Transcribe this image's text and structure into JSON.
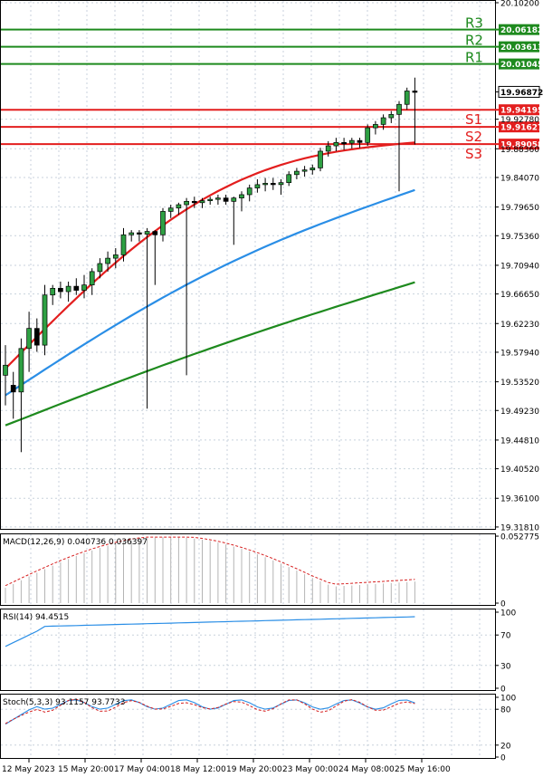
{
  "chart_data": {
    "type": "candlestick",
    "main": {
      "ylim": [
        19.318,
        20.102
      ],
      "price_ticks": [
        "20.10200",
        "19.96872",
        "19.92780",
        "19.88360",
        "19.84070",
        "19.79650",
        "19.75360",
        "19.70940",
        "19.66650",
        "19.62230",
        "19.57940",
        "19.53520",
        "19.49230",
        "19.44810",
        "19.40520",
        "19.36100",
        "19.31810"
      ],
      "current_price": "19.96872",
      "resistance": [
        {
          "label": "R3",
          "value": "20.06182",
          "color": "#1e8a1e"
        },
        {
          "label": "R2",
          "value": "20.03613",
          "color": "#1e8a1e"
        },
        {
          "label": "R1",
          "value": "20.01045",
          "color": "#1e8a1e"
        }
      ],
      "support": [
        {
          "label": "S1",
          "value": "19.94195",
          "color": "#e31e1e"
        },
        {
          "label": "S2",
          "value": "19.91627",
          "color": "#e31e1e"
        },
        {
          "label": "S3",
          "value": "19.89058",
          "color": "#e31e1e"
        }
      ],
      "candles": [
        [
          19.545,
          19.59,
          19.5,
          19.56
        ],
        [
          19.53,
          19.55,
          19.48,
          19.52
        ],
        [
          19.52,
          19.6,
          19.43,
          19.585
        ],
        [
          19.585,
          19.64,
          19.55,
          19.615
        ],
        [
          19.615,
          19.63,
          19.58,
          19.59
        ],
        [
          19.59,
          19.68,
          19.575,
          19.665
        ],
        [
          19.665,
          19.68,
          19.65,
          19.675
        ],
        [
          19.675,
          19.685,
          19.66,
          19.67
        ],
        [
          19.67,
          19.685,
          19.655,
          19.678
        ],
        [
          19.678,
          19.69,
          19.665,
          19.672
        ],
        [
          19.672,
          19.695,
          19.66,
          19.68
        ],
        [
          19.68,
          19.705,
          19.665,
          19.7
        ],
        [
          19.7,
          19.72,
          19.69,
          19.712
        ],
        [
          19.712,
          19.73,
          19.7,
          19.72
        ],
        [
          19.72,
          19.735,
          19.705,
          19.725
        ],
        [
          19.725,
          19.765,
          19.715,
          19.755
        ],
        [
          19.755,
          19.762,
          19.745,
          19.758
        ],
        [
          19.758,
          19.762,
          19.745,
          19.756
        ],
        [
          19.756,
          19.765,
          19.495,
          19.76
        ],
        [
          19.76,
          19.762,
          19.68,
          19.755
        ],
        [
          19.755,
          19.795,
          19.745,
          19.79
        ],
        [
          19.79,
          19.8,
          19.78,
          19.795
        ],
        [
          19.795,
          19.803,
          19.785,
          19.8
        ],
        [
          19.8,
          19.81,
          19.545,
          19.805
        ],
        [
          19.805,
          19.812,
          19.795,
          19.803
        ],
        [
          19.803,
          19.81,
          19.795,
          19.806
        ],
        [
          19.806,
          19.812,
          19.8,
          19.808
        ],
        [
          19.808,
          19.815,
          19.8,
          19.81
        ],
        [
          19.81,
          19.815,
          19.8,
          19.805
        ],
        [
          19.805,
          19.812,
          19.74,
          19.81
        ],
        [
          19.81,
          19.82,
          19.79,
          19.815
        ],
        [
          19.815,
          19.83,
          19.805,
          19.825
        ],
        [
          19.825,
          19.838,
          19.818,
          19.83
        ],
        [
          19.83,
          19.84,
          19.82,
          19.832
        ],
        [
          19.832,
          19.84,
          19.822,
          19.83
        ],
        [
          19.83,
          19.838,
          19.815,
          19.833
        ],
        [
          19.833,
          19.85,
          19.828,
          19.845
        ],
        [
          19.845,
          19.855,
          19.838,
          19.85
        ],
        [
          19.85,
          19.858,
          19.842,
          19.852
        ],
        [
          19.852,
          19.86,
          19.845,
          19.855
        ],
        [
          19.855,
          19.885,
          19.85,
          19.88
        ],
        [
          19.88,
          19.895,
          19.872,
          19.888
        ],
        [
          19.888,
          19.9,
          19.88,
          19.893
        ],
        [
          19.893,
          19.9,
          19.882,
          19.892
        ],
        [
          19.892,
          19.9,
          19.884,
          19.896
        ],
        [
          19.896,
          19.9,
          19.885,
          19.893
        ],
        [
          19.893,
          19.92,
          19.888,
          19.915
        ],
        [
          19.915,
          19.925,
          19.905,
          19.92
        ],
        [
          19.92,
          19.935,
          19.912,
          19.93
        ],
        [
          19.93,
          19.94,
          19.922,
          19.935
        ],
        [
          19.935,
          19.955,
          19.82,
          19.95
        ],
        [
          19.95,
          19.975,
          19.942,
          19.97
        ],
        [
          19.97,
          19.99,
          19.89,
          19.969
        ]
      ],
      "ma_fast": {
        "color": "#e31e1e",
        "start": [
          0,
          19.555
        ],
        "end": [
          52,
          19.893
        ]
      },
      "ma_mid": {
        "color": "#2a8ee6",
        "start": [
          0,
          19.515
        ],
        "end": [
          52,
          19.822
        ]
      },
      "ma_slow": {
        "color": "#1e8a1e",
        "start": [
          0,
          19.47
        ],
        "end": [
          52,
          19.684
        ]
      }
    },
    "macd": {
      "label": "MACD(12,26,9) 0.040736 0.036397",
      "ticks": [
        "0.052775",
        "0"
      ],
      "ylim": [
        0,
        0.0528
      ]
    },
    "rsi": {
      "label": "RSI(14) 94.4515",
      "ticks": [
        "100",
        "70",
        "30",
        "0"
      ],
      "ylim": [
        0,
        100
      ]
    },
    "stoch": {
      "label": "Stoch(5,3,3) 93.1157 93.7733",
      "ticks": [
        "100",
        "80",
        "20",
        "0"
      ],
      "ylim": [
        0,
        100
      ]
    },
    "time_labels": [
      "12 May 2023",
      "15 May 20:00",
      "17 May 04:00",
      "18 May 12:00",
      "19 May 20:00",
      "23 May 00:00",
      "24 May 08:00",
      "25 May 16:00"
    ]
  }
}
